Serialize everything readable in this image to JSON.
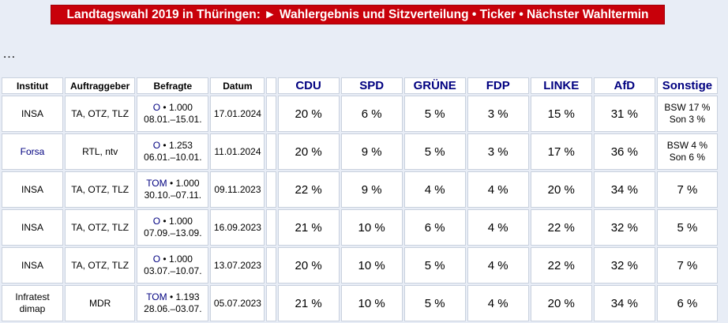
{
  "banner": "Landtagswahl 2019 in Thüringen: ► Wahlergebnis und Sitzverteilung • Ticker • Nächster Wahltermin",
  "ellipsis": "…",
  "headers": {
    "institut": "Institut",
    "auftraggeber": "Auftraggeber",
    "befragte": "Befragte",
    "datum": "Datum",
    "parties": [
      "CDU",
      "SPD",
      "GRÜNE",
      "FDP",
      "LINKE",
      "AfD",
      "Sonstige"
    ]
  },
  "rows": [
    {
      "institut": "INSA",
      "institut_link": false,
      "auftraggeber": "TA, OTZ, TLZ",
      "methode": "O",
      "anzahl": " • 1.000",
      "zeitraum": "08.01.–15.01.",
      "datum": "17.01.2024",
      "werte": [
        "20 %",
        "6 %",
        "5 %",
        "3 %",
        "15 %",
        "31 %"
      ],
      "sonstige": [
        "BSW 17 %",
        "Son 3 %"
      ]
    },
    {
      "institut": "Forsa",
      "institut_link": true,
      "auftraggeber": "RTL, ntv",
      "methode": "O",
      "anzahl": " • 1.253",
      "zeitraum": "06.01.–10.01.",
      "datum": "11.01.2024",
      "werte": [
        "20 %",
        "9 %",
        "5 %",
        "3 %",
        "17 %",
        "36 %"
      ],
      "sonstige": [
        "BSW 4 %",
        "Son 6 %"
      ]
    },
    {
      "institut": "INSA",
      "institut_link": false,
      "auftraggeber": "TA, OTZ, TLZ",
      "methode": "TOM",
      "anzahl": " • 1.000",
      "zeitraum": "30.10.–07.11.",
      "datum": "09.11.2023",
      "werte": [
        "22 %",
        "9 %",
        "4 %",
        "4 %",
        "20 %",
        "34 %"
      ],
      "sonstige": [
        "7 %"
      ]
    },
    {
      "institut": "INSA",
      "institut_link": false,
      "auftraggeber": "TA, OTZ, TLZ",
      "methode": "O",
      "anzahl": " • 1.000",
      "zeitraum": "07.09.–13.09.",
      "datum": "16.09.2023",
      "werte": [
        "21 %",
        "10 %",
        "6 %",
        "4 %",
        "22 %",
        "32 %"
      ],
      "sonstige": [
        "5 %"
      ]
    },
    {
      "institut": "INSA",
      "institut_link": false,
      "auftraggeber": "TA, OTZ, TLZ",
      "methode": "O",
      "anzahl": " • 1.000",
      "zeitraum": "03.07.–10.07.",
      "datum": "13.07.2023",
      "werte": [
        "20 %",
        "10 %",
        "5 %",
        "4 %",
        "22 %",
        "32 %"
      ],
      "sonstige": [
        "7 %"
      ]
    },
    {
      "institut": "Infratest dimap",
      "institut_link": false,
      "auftraggeber": "MDR",
      "methode": "TOM",
      "anzahl": " • 1.193",
      "zeitraum": "28.06.–03.07.",
      "datum": "05.07.2023",
      "werte": [
        "21 %",
        "10 %",
        "5 %",
        "4 %",
        "20 %",
        "34 %"
      ],
      "sonstige": [
        "6 %"
      ]
    }
  ]
}
